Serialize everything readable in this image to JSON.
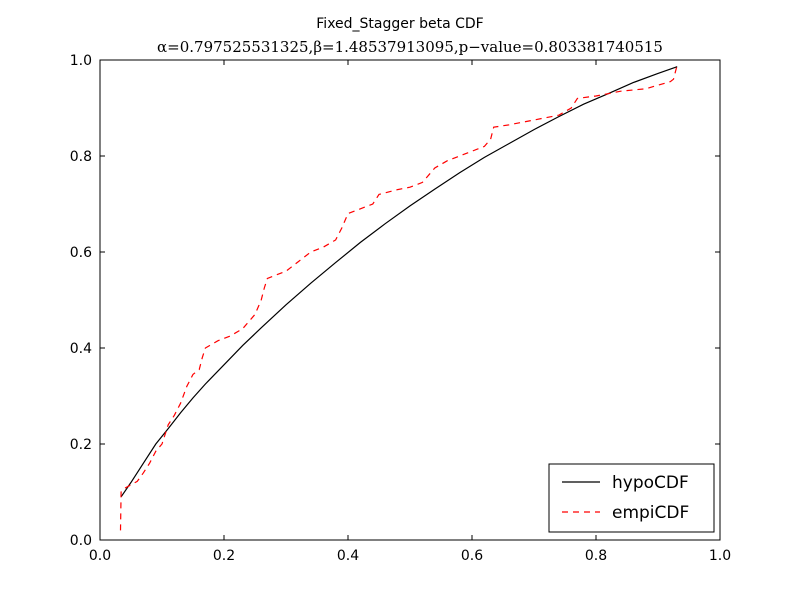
{
  "chart_data": {
    "type": "line",
    "title": "Fixed_Stagger beta CDF",
    "subtitle": "α=0.797525531325,β=1.48537913095,p−value=0.803381740515",
    "xlim": [
      0.0,
      1.0
    ],
    "ylim": [
      0.0,
      1.0
    ],
    "xticks": [
      "0.0",
      "0.2",
      "0.4",
      "0.6",
      "0.8",
      "1.0"
    ],
    "yticks": [
      "0.0",
      "0.2",
      "0.4",
      "0.6",
      "0.8",
      "1.0"
    ],
    "grid": false,
    "legend_position": "lower-right",
    "series": [
      {
        "name": "hypoCDF",
        "color": "#000000",
        "dash": "solid",
        "x": [
          0.034,
          0.05,
          0.07,
          0.09,
          0.11,
          0.13,
          0.15,
          0.17,
          0.2,
          0.23,
          0.26,
          0.3,
          0.34,
          0.38,
          0.42,
          0.46,
          0.5,
          0.54,
          0.58,
          0.62,
          0.66,
          0.7,
          0.74,
          0.78,
          0.82,
          0.86,
          0.9,
          0.931
        ],
        "y": [
          0.09,
          0.12,
          0.16,
          0.2,
          0.232,
          0.265,
          0.296,
          0.325,
          0.365,
          0.405,
          0.442,
          0.49,
          0.535,
          0.578,
          0.62,
          0.659,
          0.696,
          0.731,
          0.765,
          0.797,
          0.826,
          0.855,
          0.882,
          0.908,
          0.93,
          0.953,
          0.972,
          0.986
        ]
      },
      {
        "name": "empiCDF",
        "color": "#ff0000",
        "dash": "dashed",
        "x": [
          0.033,
          0.034,
          0.04,
          0.05,
          0.06,
          0.07,
          0.08,
          0.09,
          0.1,
          0.105,
          0.11,
          0.12,
          0.13,
          0.14,
          0.15,
          0.16,
          0.165,
          0.17,
          0.19,
          0.21,
          0.23,
          0.25,
          0.26,
          0.265,
          0.27,
          0.3,
          0.32,
          0.34,
          0.36,
          0.38,
          0.39,
          0.4,
          0.42,
          0.44,
          0.45,
          0.48,
          0.5,
          0.52,
          0.54,
          0.56,
          0.58,
          0.6,
          0.62,
          0.63,
          0.635,
          0.66,
          0.7,
          0.74,
          0.76,
          0.77,
          0.8,
          0.84,
          0.88,
          0.92,
          0.925,
          0.93
        ],
        "y": [
          0.02,
          0.1,
          0.108,
          0.115,
          0.122,
          0.14,
          0.16,
          0.185,
          0.2,
          0.22,
          0.24,
          0.26,
          0.285,
          0.32,
          0.345,
          0.355,
          0.38,
          0.4,
          0.415,
          0.425,
          0.44,
          0.47,
          0.5,
          0.525,
          0.545,
          0.56,
          0.58,
          0.6,
          0.61,
          0.625,
          0.65,
          0.68,
          0.69,
          0.7,
          0.72,
          0.73,
          0.735,
          0.745,
          0.775,
          0.79,
          0.8,
          0.81,
          0.82,
          0.835,
          0.86,
          0.865,
          0.875,
          0.885,
          0.9,
          0.92,
          0.925,
          0.935,
          0.94,
          0.955,
          0.96,
          0.985
        ]
      }
    ]
  }
}
